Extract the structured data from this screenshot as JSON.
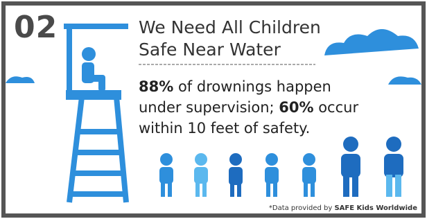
{
  "badge": "02",
  "title": [
    "We Need All Children",
    "Safe Near Water"
  ],
  "body": [
    {
      "text": "88%",
      "bold": true
    },
    {
      "text": " of drownings happen under supervision; ",
      "bold": false
    },
    {
      "text": "60%",
      "bold": true
    },
    {
      "text": " occur within 10 feet of safety.",
      "bold": false
    }
  ],
  "footnote": [
    {
      "text": "*Data provided by ",
      "bold": false
    },
    {
      "text": "SAFE Kids Worldwide",
      "bold": true
    }
  ]
}
